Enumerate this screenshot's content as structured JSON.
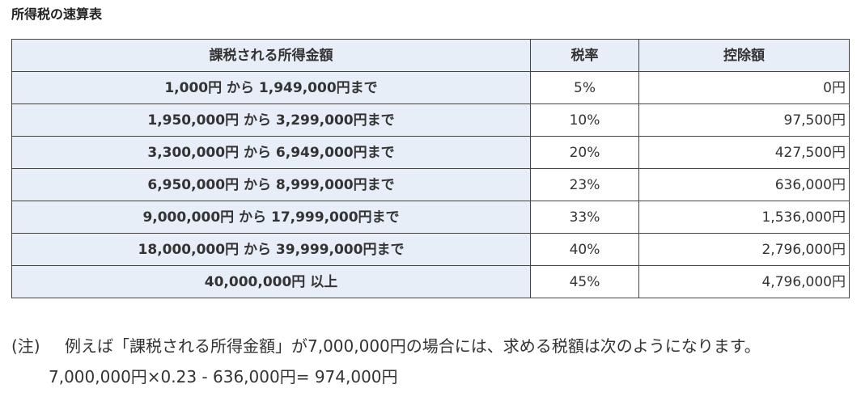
{
  "title": "所得税の速算表",
  "table": {
    "headers": [
      "課税される所得金額",
      "税率",
      "控除額"
    ],
    "rows": [
      {
        "range": "1,000円 から 1,949,000円まで",
        "rate": "5%",
        "deduction": "0円"
      },
      {
        "range": "1,950,000円 から 3,299,000円まで",
        "rate": "10%",
        "deduction": "97,500円"
      },
      {
        "range": "3,300,000円 から 6,949,000円まで",
        "rate": "20%",
        "deduction": "427,500円"
      },
      {
        "range": "6,950,000円 から 8,999,000円まで",
        "rate": "23%",
        "deduction": "636,000円"
      },
      {
        "range": "9,000,000円 から 17,999,000円まで",
        "rate": "33%",
        "deduction": "1,536,000円"
      },
      {
        "range": "18,000,000円 から 39,999,000円まで",
        "rate": "40%",
        "deduction": "2,796,000円"
      },
      {
        "range": "40,000,000円 以上",
        "rate": "45%",
        "deduction": "4,796,000円"
      }
    ]
  },
  "note": {
    "label": "(注)",
    "text": "例えば「課税される所得金額」が7,000,000円の場合には、求める税額は次のようになります。",
    "calculation": "7,000,000円×0.23 - 636,000円= 974,000円"
  }
}
